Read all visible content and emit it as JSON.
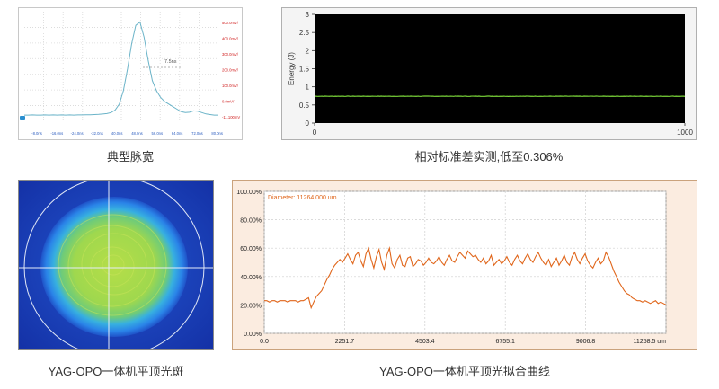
{
  "captions": {
    "pulse": "典型脉宽",
    "energy": "相对标准差实测,低至0.306%",
    "spot": "YAG-OPO一体机平顶光斑",
    "fit": "YAG-OPO一体机平顶光拟合曲线"
  },
  "colors": {
    "pulse_line": "#6ab3c8",
    "energy_line": "#7bd63a",
    "energy_bg": "#000000",
    "fit_line": "#e0661b",
    "fit_bg": "#fbece0",
    "spot_outer": "#1a3fb8",
    "spot_center": "#9ad84a"
  },
  "chart_data": [
    {
      "type": "line",
      "id": "pulse",
      "annotation": "7.5ns",
      "y_tick_labels": [
        "500.0mV/",
        "400.0mV/",
        "300.0mV/",
        "200.0mV/",
        "100.0mV/",
        "0.0mV/",
        "-11.100mV"
      ],
      "x_tick_labels": [
        "-8.0ns",
        "-16.0ns",
        "-24.0ns",
        "-32.0ns",
        "40.0ns",
        "48.0ns",
        "56.0ns",
        "64.0ns",
        "72.0ns",
        "80.0ns"
      ],
      "series": [
        {
          "values": [
            5,
            5,
            6,
            5,
            5,
            6,
            5,
            6,
            5,
            6,
            5,
            6,
            5,
            6,
            6,
            7,
            7,
            8,
            9,
            11,
            14,
            20,
            35,
            70,
            150,
            280,
            430,
            540,
            560,
            470,
            330,
            210,
            150,
            110,
            85,
            70,
            55,
            40,
            25,
            20,
            22,
            30,
            28,
            20,
            12,
            8,
            5,
            5
          ]
        }
      ]
    },
    {
      "type": "line",
      "id": "energy",
      "ylabel": "Energy (J)",
      "ylim": [
        0,
        3
      ],
      "xlim": [
        0,
        1000
      ],
      "y_ticks": [
        "0",
        "0.5",
        "1",
        "1.5",
        "2",
        "2.5",
        "3"
      ],
      "x_ticks": [
        "0",
        "1000"
      ],
      "series": [
        {
          "mean": 0.74,
          "rsd_percent": 0.306
        }
      ]
    },
    {
      "type": "line",
      "id": "fit",
      "legend": "Diameter: 11264.000 um",
      "ylim": [
        0,
        100
      ],
      "y_ticks": [
        "0.00%",
        "20.00%",
        "40.00%",
        "60.00%",
        "80.00%",
        "100.00%"
      ],
      "x_ticks": [
        "0.0",
        "2251.7",
        "4503.4",
        "6755.1",
        "9006.8",
        "11258.5 um"
      ],
      "series": [
        {
          "values": [
            23,
            23,
            22,
            23,
            23,
            22,
            23,
            23,
            23,
            22,
            23,
            23,
            23,
            22,
            23,
            23,
            24,
            25,
            18,
            22,
            26,
            28,
            30,
            34,
            38,
            41,
            45,
            48,
            50,
            52,
            50,
            53,
            56,
            52,
            49,
            55,
            57,
            51,
            47,
            56,
            60,
            52,
            46,
            54,
            59,
            50,
            45,
            55,
            60,
            49,
            46,
            52,
            55,
            48,
            47,
            53,
            54,
            47,
            49,
            52,
            51,
            48,
            50,
            53,
            50,
            49,
            51,
            54,
            50,
            48,
            52,
            55,
            51,
            50,
            54,
            57,
            55,
            53,
            58,
            56,
            54,
            55,
            52,
            50,
            53,
            49,
            51,
            55,
            48,
            50,
            52,
            49,
            51,
            54,
            50,
            48,
            52,
            55,
            51,
            49,
            53,
            56,
            52,
            50,
            54,
            57,
            53,
            50,
            48,
            52,
            47,
            50,
            53,
            48,
            51,
            55,
            50,
            48,
            54,
            57,
            52,
            49,
            53,
            56,
            51,
            48,
            46,
            50,
            53,
            49,
            51,
            57,
            54,
            49,
            44,
            40,
            36,
            33,
            30,
            28,
            27,
            25,
            24,
            23,
            23,
            22,
            23,
            22,
            21,
            22,
            23,
            21,
            22,
            21,
            20
          ]
        }
      ]
    }
  ]
}
